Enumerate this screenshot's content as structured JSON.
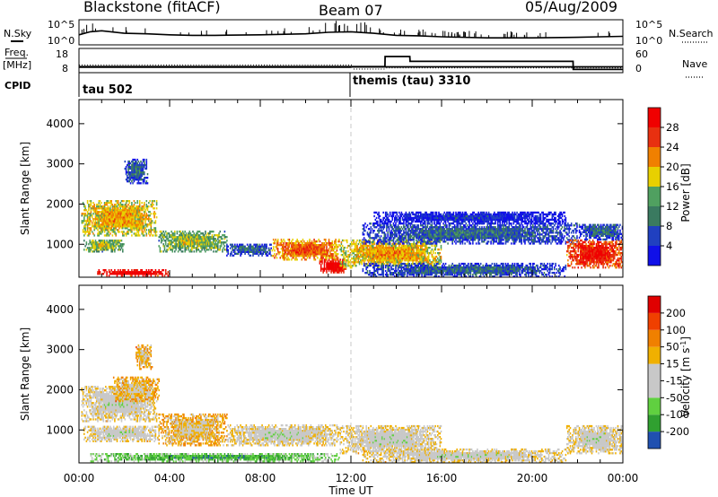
{
  "header": {
    "title": "Blackstone (fitACF)",
    "beam": "Beam 07",
    "date": "05/Aug/2009"
  },
  "labels": {
    "nsky": "N.Sky",
    "nsearch": "N.Search",
    "freq_line1": "Freq.",
    "freq_line2": "[MHz]",
    "nave": "Nave",
    "cpid": "CPID",
    "noise_left_top": "10^5",
    "noise_left_bot": "10^0",
    "noise_right_top": "10^5",
    "noise_right_bot": "10^0",
    "freq_top": "18",
    "freq_bot": "8",
    "nave_top": "60",
    "nave_bot": "0",
    "cpid_1": "tau 502",
    "cpid_2": "themis (tau) 3310",
    "x_axis_title": "Time UT",
    "power_label": "Power [dB]",
    "velocity_label": "Velocity [m s",
    "velocity_sup": "-1",
    "velocity_close": "]"
  },
  "colors": {
    "power_scale": [
      "#1010e8",
      "#2040c0",
      "#3a7a60",
      "#50a060",
      "#e8d000",
      "#f08000",
      "#e83010",
      "#f00000"
    ],
    "velocity_scale": [
      "#e00000",
      "#f04000",
      "#f08000",
      "#f0b000",
      "#c8c8c8",
      "#c8c8c8",
      "#60d040",
      "#30a030",
      "#2050b0",
      "#1010c0"
    ],
    "midnight_dash": "#c0c0c0"
  },
  "chart_data": [
    {
      "type": "line",
      "title": "N.Sky / N.Search",
      "x_range_hours": [
        0,
        24
      ],
      "y_scale": "log",
      "y_range": [
        "10^0",
        "10^5"
      ],
      "series": [
        {
          "name": "N.Sky",
          "x": [
            0,
            0.5,
            1,
            2,
            3,
            4,
            5,
            6,
            8,
            10,
            11,
            12,
            13,
            14,
            15,
            16,
            18,
            20,
            22,
            23,
            24
          ],
          "y_log10": [
            2.0,
            2.6,
            2.8,
            2.3,
            2.2,
            2.0,
            1.9,
            1.9,
            2.0,
            2.2,
            2.5,
            2.6,
            2.3,
            1.9,
            1.8,
            1.6,
            1.4,
            1.4,
            1.5,
            1.6,
            1.7
          ]
        }
      ]
    },
    {
      "type": "line",
      "title": "Freq / Nave",
      "x_range_hours": [
        0,
        24
      ],
      "series": [
        {
          "name": "Freq. [MHz]",
          "y_range": [
            8,
            18
          ],
          "x": [
            0,
            0.3,
            12,
            12.01,
            24
          ],
          "y": [
            10.3,
            10.3,
            10.3,
            10.4,
            10.4
          ]
        },
        {
          "name": "Nave",
          "y_range": [
            0,
            60
          ],
          "x": [
            0,
            13.5,
            13.51,
            14.6,
            14.61,
            21.8,
            21.81,
            24
          ],
          "y": [
            15,
            15,
            40,
            40,
            28,
            28,
            8,
            8
          ]
        }
      ]
    },
    {
      "type": "heatmap",
      "title": "Power [dB]",
      "x_label": "Time UT",
      "y_label": "Slant Range [km]",
      "x_range_hours": [
        0,
        24
      ],
      "x_ticks": [
        "00:00",
        "04:00",
        "08:00",
        "12:00",
        "16:00",
        "20:00",
        "00:00"
      ],
      "y_range": [
        180,
        4600
      ],
      "y_ticks": [
        "1000",
        "2000",
        "3000",
        "4000"
      ],
      "colorbar_ticks": [
        "4",
        "8",
        "12",
        "16",
        "20",
        "24",
        "28"
      ],
      "colorbar_range": [
        0,
        32
      ],
      "echo_regions": [
        {
          "t0": 0.1,
          "t1": 3.4,
          "r0": 1200,
          "r1": 2100,
          "level": 4
        },
        {
          "t0": 0.2,
          "t1": 2.0,
          "r0": 800,
          "r1": 1100,
          "level": 3
        },
        {
          "t0": 2.0,
          "t1": 3.0,
          "r0": 2500,
          "r1": 3100,
          "level": 1
        },
        {
          "t0": 3.5,
          "t1": 6.5,
          "r0": 800,
          "r1": 1300,
          "level": 3
        },
        {
          "t0": 6.5,
          "t1": 8.5,
          "r0": 700,
          "r1": 1000,
          "level": 1
        },
        {
          "t0": 8.5,
          "t1": 11.5,
          "r0": 600,
          "r1": 1100,
          "level": 5
        },
        {
          "t0": 10.6,
          "t1": 11.8,
          "r0": 280,
          "r1": 600,
          "level": 7
        },
        {
          "t0": 0.8,
          "t1": 4.0,
          "r0": 200,
          "r1": 340,
          "level": 7
        },
        {
          "t0": 11.5,
          "t1": 16.0,
          "r0": 400,
          "r1": 1100,
          "level": 4
        },
        {
          "t0": 12.5,
          "t1": 21.5,
          "r0": 180,
          "r1": 500,
          "level": 1
        },
        {
          "t0": 12.5,
          "t1": 22.0,
          "r0": 1000,
          "r1": 1500,
          "level": 1
        },
        {
          "t0": 13.0,
          "t1": 21.5,
          "r0": 1500,
          "r1": 1800,
          "level": 0
        },
        {
          "t0": 21.5,
          "t1": 24.0,
          "r0": 400,
          "r1": 1100,
          "level": 6
        },
        {
          "t0": 22.0,
          "t1": 24.0,
          "r0": 1100,
          "r1": 1500,
          "level": 1
        }
      ]
    },
    {
      "type": "heatmap",
      "title": "Velocity [m s-1]",
      "x_label": "Time UT",
      "y_label": "Slant Range [km]",
      "x_range_hours": [
        0,
        24
      ],
      "x_ticks": [
        "00:00",
        "04:00",
        "08:00",
        "12:00",
        "16:00",
        "20:00",
        "00:00"
      ],
      "y_range": [
        180,
        4600
      ],
      "y_ticks": [
        "1000",
        "2000",
        "3000",
        "4000"
      ],
      "colorbar_ticks": [
        "200",
        "100",
        "50",
        "15",
        "-15",
        "-50",
        "-100",
        "-200"
      ],
      "echo_regions": [
        {
          "t0": 0.1,
          "t1": 3.4,
          "r0": 1200,
          "r1": 2100,
          "level": 4
        },
        {
          "t0": 1.5,
          "t1": 3.5,
          "r0": 1700,
          "r1": 2300,
          "level": 3
        },
        {
          "t0": 2.5,
          "t1": 3.2,
          "r0": 2500,
          "r1": 3100,
          "level": 3
        },
        {
          "t0": 3.5,
          "t1": 6.5,
          "r0": 600,
          "r1": 1400,
          "level": 3
        },
        {
          "t0": 0.2,
          "t1": 3.5,
          "r0": 700,
          "r1": 1100,
          "level": 4
        },
        {
          "t0": 6.5,
          "t1": 11.5,
          "r0": 600,
          "r1": 1100,
          "level": 4
        },
        {
          "t0": 0.5,
          "t1": 11.5,
          "r0": 200,
          "r1": 400,
          "level": 6
        },
        {
          "t0": 11.5,
          "t1": 16.0,
          "r0": 400,
          "r1": 1100,
          "level": 4
        },
        {
          "t0": 12.5,
          "t1": 21.5,
          "r0": 180,
          "r1": 500,
          "level": 4
        },
        {
          "t0": 21.5,
          "t1": 24.0,
          "r0": 400,
          "r1": 1100,
          "level": 4
        }
      ]
    }
  ]
}
